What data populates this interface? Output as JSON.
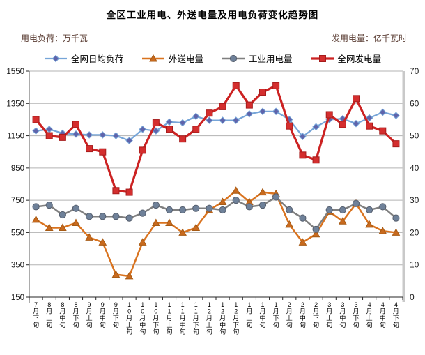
{
  "chart_data": {
    "type": "line",
    "title": "全区工业用电、外送电量及用电负荷变化趋势图",
    "left_axis": {
      "label": "用电负荷：万千瓦",
      "min": 150,
      "max": 1550,
      "ticks": [
        150,
        350,
        550,
        750,
        950,
        1150,
        1350,
        1550
      ]
    },
    "right_axis": {
      "label": "发用电量：亿千瓦时",
      "min": 0,
      "max": 70,
      "ticks": [
        0,
        10,
        20,
        30,
        40,
        50,
        60,
        70
      ]
    },
    "grid": true,
    "legend_position": "top",
    "categories": [
      "7月下旬",
      "8月上旬",
      "8月中旬",
      "8月下旬",
      "9月上旬",
      "9月中旬",
      "9月下旬",
      "10月上旬",
      "10月中旬",
      "10月下旬",
      "11月上旬",
      "11月中旬",
      "11月下旬",
      "12月上旬",
      "12月中旬",
      "12月下旬",
      "1月上旬",
      "1月中旬",
      "1月下旬",
      "2月上旬",
      "2月中旬",
      "2月下旬",
      "3月上旬",
      "3月中旬",
      "3月下旬",
      "4月上旬",
      "4月中旬",
      "4月下旬"
    ],
    "series": [
      {
        "name": "全网日均负荷",
        "axis": "left",
        "marker": "diamond",
        "line_color": "#76A5D8",
        "marker_color": "#5F64AB",
        "marker_stroke": "#76A5D8",
        "line_width": 2.25,
        "values": [
          1180,
          1190,
          1165,
          1160,
          1155,
          1155,
          1150,
          1120,
          1190,
          1180,
          1235,
          1230,
          1270,
          1245,
          1245,
          1245,
          1285,
          1300,
          1300,
          1250,
          1145,
          1205,
          1250,
          1255,
          1225,
          1260,
          1295,
          1275
        ]
      },
      {
        "name": "外送电量",
        "axis": "right",
        "marker": "triangle",
        "line_color": "#D9731F",
        "marker_color": "#C96A1E",
        "marker_stroke": "#A65A14",
        "line_width": 2.5,
        "values": [
          24,
          21.5,
          21.5,
          23,
          18.5,
          17,
          7,
          6.5,
          17,
          23,
          23,
          20,
          21.5,
          27,
          29.5,
          33,
          29.5,
          32.5,
          32,
          22.5,
          17,
          19.5,
          26.5,
          23.5,
          29,
          22.5,
          20.5,
          20
        ]
      },
      {
        "name": "工业用电量",
        "axis": "right",
        "marker": "circle",
        "line_color": "#7F7F7F",
        "marker_color": "#6F8199",
        "marker_stroke": "#565F6E",
        "line_width": 2.5,
        "values": [
          28,
          28.5,
          25.5,
          27.5,
          25,
          25,
          25,
          24.5,
          26,
          28.5,
          27,
          27,
          27.5,
          27.5,
          27,
          30,
          28,
          28.5,
          31,
          27,
          24.5,
          21,
          27,
          27,
          29,
          27,
          28,
          24.5
        ]
      },
      {
        "name": "全网发电量",
        "axis": "right",
        "marker": "square",
        "line_color": "#CC2222",
        "marker_color": "#D42E2E",
        "marker_stroke": "#A61C1C",
        "line_width": 3.25,
        "values": [
          55,
          50,
          49.5,
          53.5,
          46,
          45,
          33,
          32.5,
          45.5,
          54,
          52,
          49,
          52,
          57,
          59,
          65.5,
          59.5,
          63.5,
          65.5,
          53,
          44,
          42.5,
          56.5,
          53.5,
          61.5,
          53,
          51.5,
          47.5
        ]
      }
    ],
    "colors": {
      "caption_text": "#5d4037",
      "gridline": "#b3b3b3",
      "axis_line": "#262626",
      "right_axis_band": "#c9c9c9",
      "tick_text": "#1a1a1a"
    }
  }
}
